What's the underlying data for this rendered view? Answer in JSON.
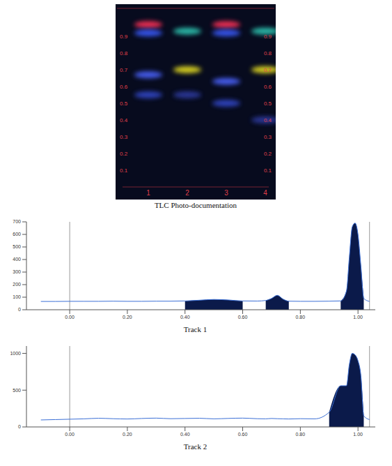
{
  "plate": {
    "caption": "TLC Photo-documentation",
    "rf_ticks": [
      0.1,
      0.2,
      0.3,
      0.4,
      0.5,
      0.6,
      0.7,
      0.8,
      0.9
    ],
    "lanes": [
      "1",
      "2",
      "3",
      "4"
    ],
    "bands": [
      {
        "lane": 1,
        "rf": 0.97,
        "color": "#ff3058"
      },
      {
        "lane": 1,
        "rf": 0.92,
        "color": "#3a5cff"
      },
      {
        "lane": 1,
        "rf": 0.67,
        "color": "#4b63ff"
      },
      {
        "lane": 1,
        "rf": 0.55,
        "color": "#3346c8"
      },
      {
        "lane": 2,
        "rf": 0.93,
        "color": "#2fc8b4"
      },
      {
        "lane": 2,
        "rf": 0.7,
        "color": "#e8e020"
      },
      {
        "lane": 2,
        "rf": 0.55,
        "color": "#2d3aa0"
      },
      {
        "lane": 3,
        "rf": 0.97,
        "color": "#ff3058"
      },
      {
        "lane": 3,
        "rf": 0.92,
        "color": "#3a5cff"
      },
      {
        "lane": 3,
        "rf": 0.63,
        "color": "#4b63ff"
      },
      {
        "lane": 3,
        "rf": 0.5,
        "color": "#3346c8"
      },
      {
        "lane": 4,
        "rf": 0.93,
        "color": "#2fc8b4"
      },
      {
        "lane": 4,
        "rf": 0.7,
        "color": "#e8e020"
      },
      {
        "lane": 4,
        "rf": 0.4,
        "color": "#2d3aa0"
      }
    ]
  },
  "chart_data": [
    {
      "type": "line",
      "title": "Track 1",
      "x": [
        -0.1,
        -0.05,
        0,
        0.05,
        0.1,
        0.15,
        0.2,
        0.25,
        0.3,
        0.35,
        0.4,
        0.45,
        0.5,
        0.55,
        0.6,
        0.65,
        0.68,
        0.7,
        0.72,
        0.74,
        0.76,
        0.8,
        0.85,
        0.9,
        0.94,
        0.96,
        0.97,
        0.98,
        0.99,
        1.0,
        1.01,
        1.02,
        1.04
      ],
      "values": [
        66,
        66,
        67,
        67,
        67,
        68,
        67,
        67,
        68,
        68,
        70,
        76,
        82,
        78,
        70,
        69,
        74,
        90,
        115,
        85,
        68,
        67,
        67,
        68,
        70,
        150,
        420,
        660,
        690,
        600,
        350,
        90,
        66
      ],
      "color": "#3b6fd6",
      "peak_ranges": [
        [
          0.4,
          0.6
        ],
        [
          0.68,
          0.76
        ],
        [
          0.94,
          1.02
        ]
      ],
      "vlines": [
        0,
        1.04
      ],
      "xlim": [
        -0.15,
        1.06
      ],
      "xticks": [
        {
          "value": 0,
          "label": "0.00"
        },
        {
          "value": 0.2,
          "label": "0.20"
        },
        {
          "value": 0.4,
          "label": "0.40"
        },
        {
          "value": 0.6,
          "label": "0.60"
        },
        {
          "value": 0.8,
          "label": "0.80"
        },
        {
          "value": 1.0,
          "label": "1.00"
        }
      ],
      "ylim": [
        0,
        700
      ],
      "yticks": [
        0,
        100,
        200,
        300,
        400,
        500,
        600,
        700
      ]
    },
    {
      "type": "line",
      "title": "Track 2",
      "x": [
        -0.1,
        -0.05,
        0,
        0.05,
        0.1,
        0.15,
        0.2,
        0.25,
        0.3,
        0.35,
        0.4,
        0.45,
        0.5,
        0.55,
        0.6,
        0.65,
        0.68,
        0.7,
        0.72,
        0.74,
        0.76,
        0.8,
        0.85,
        0.9,
        0.94,
        0.96,
        0.97,
        0.98,
        0.99,
        1.0,
        1.01,
        1.02,
        1.04
      ],
      "values": [
        95,
        100,
        105,
        110,
        118,
        112,
        108,
        115,
        120,
        112,
        115,
        118,
        110,
        116,
        120,
        112,
        110,
        115,
        112,
        110,
        108,
        112,
        110,
        200,
        560,
        560,
        850,
        1000,
        980,
        900,
        700,
        150,
        100
      ],
      "color": "#3b6fd6",
      "peak_ranges": [
        [
          0.9,
          1.02
        ]
      ],
      "vlines": [
        0,
        1.04
      ],
      "xlim": [
        -0.15,
        1.06
      ],
      "xticks": [
        {
          "value": 0,
          "label": "0.00"
        },
        {
          "value": 0.2,
          "label": "0.20"
        },
        {
          "value": 0.4,
          "label": "0.40"
        },
        {
          "value": 0.6,
          "label": "0.60"
        },
        {
          "value": 0.8,
          "label": "0.80"
        },
        {
          "value": 1.0,
          "label": "1.00"
        }
      ],
      "ylim": [
        0,
        1100
      ],
      "yticks": [
        0,
        500,
        1000
      ]
    }
  ]
}
